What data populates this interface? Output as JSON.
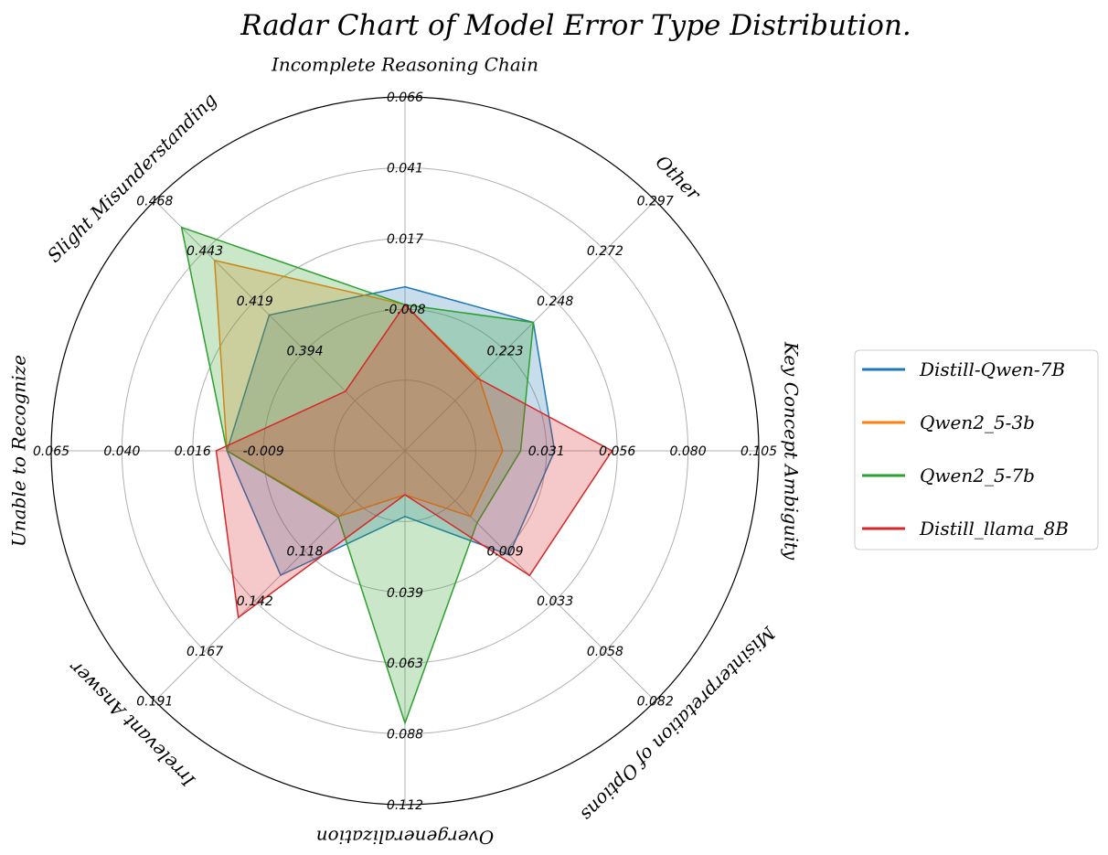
{
  "chart_data": {
    "type": "radar",
    "title": "Radar Chart of Model Error Type Distribution.",
    "axes": [
      {
        "label": "Incomplete Reasoning Chain",
        "ticks": [
          "-0.008",
          "0.017",
          "0.041",
          "0.066"
        ],
        "range": [
          -0.0328,
          0.066
        ]
      },
      {
        "label": "Other",
        "ticks": [
          "0.223",
          "0.248",
          "0.272",
          "0.297"
        ],
        "range": [
          0.1984,
          0.297
        ]
      },
      {
        "label": "Key Concept Ambiguity",
        "ticks": [
          "0.031",
          "0.056",
          "0.080",
          "0.105"
        ],
        "range": [
          0.0062,
          0.105
        ]
      },
      {
        "label": "Misinterpretation of Options",
        "ticks": [
          "0.009",
          "0.033",
          "0.058",
          "0.082"
        ],
        "range": [
          -0.0156,
          0.082
        ]
      },
      {
        "label": "Overgeneralization",
        "ticks": [
          "0.039",
          "0.063",
          "0.088",
          "0.112"
        ],
        "range": [
          0.0144,
          0.112
        ]
      },
      {
        "label": "Irrelevant Answer",
        "ticks": [
          "0.118",
          "0.142",
          "0.167",
          "0.191"
        ],
        "range": [
          0.0936,
          0.191
        ]
      },
      {
        "label": "Unable to Recognize",
        "ticks": [
          "-0.009",
          "0.016",
          "0.040",
          "0.065"
        ],
        "range": [
          -0.0336,
          0.065
        ]
      },
      {
        "label": "Slight Misunderstanding",
        "ticks": [
          "0.394",
          "0.419",
          "0.443",
          "0.468"
        ],
        "range": [
          0.3696,
          0.468
        ]
      }
    ],
    "series": [
      {
        "name": "Distill-Qwen-7B",
        "color": "#1f77b4",
        "values": [
          0.013,
          0.249,
          0.048,
          0.025,
          0.0325,
          0.142,
          0.016,
          0.423
        ]
      },
      {
        "name": "Qwen2_5-3b",
        "color": "#ff7f0e",
        "values": [
          0.008,
          0.2275,
          0.0335,
          0.01,
          0.0265,
          0.119,
          0.016,
          0.4445
        ]
      },
      {
        "name": "Qwen2_5-7b",
        "color": "#2ca02c",
        "values": [
          0.008,
          0.249,
          0.0385,
          0.0125,
          0.0895,
          0.1195,
          0.016,
          0.4575
        ]
      },
      {
        "name": "Distill_llama_8B",
        "color": "#d62728",
        "values": [
          0.008,
          0.227,
          0.064,
          0.033,
          0.0265,
          0.1585,
          0.019,
          0.393
        ]
      }
    ],
    "grid": true,
    "legend_position": "right"
  }
}
